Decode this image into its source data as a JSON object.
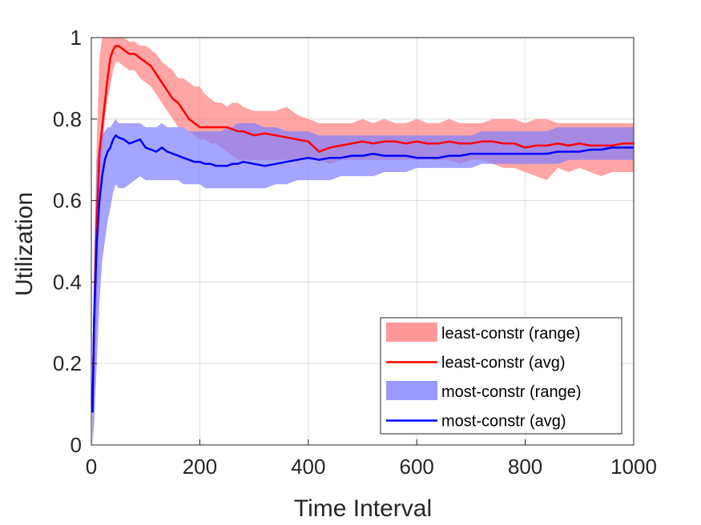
{
  "chart_data": {
    "type": "line",
    "xlabel": "Time Interval",
    "ylabel": "Utilization",
    "xlim": [
      0,
      1000
    ],
    "ylim": [
      0,
      1
    ],
    "xticks": [
      0,
      200,
      400,
      600,
      800,
      1000
    ],
    "yticks": [
      0,
      0.2,
      0.4,
      0.6,
      0.8,
      1
    ],
    "xtick_labels": [
      "0",
      "200",
      "400",
      "600",
      "800",
      "1000"
    ],
    "ytick_labels": [
      "0",
      "0.2",
      "0.4",
      "0.6",
      "0.8",
      "1"
    ],
    "grid": true,
    "legend_position": "bottom-right",
    "series": [
      {
        "name": "least-constr (avg)",
        "range_name": "least-constr (range)",
        "color": "#ff0000",
        "range_color": "#ff7f7f",
        "x": [
          2,
          5,
          10,
          15,
          20,
          25,
          30,
          35,
          40,
          45,
          50,
          60,
          70,
          80,
          90,
          100,
          110,
          120,
          130,
          140,
          150,
          160,
          170,
          180,
          190,
          200,
          210,
          220,
          230,
          240,
          250,
          260,
          270,
          280,
          300,
          320,
          340,
          360,
          380,
          400,
          420,
          440,
          460,
          480,
          500,
          520,
          540,
          560,
          580,
          600,
          620,
          640,
          660,
          680,
          700,
          720,
          740,
          760,
          780,
          800,
          820,
          840,
          860,
          880,
          900,
          920,
          940,
          960,
          980,
          1000
        ],
        "avg": [
          0.08,
          0.3,
          0.55,
          0.72,
          0.78,
          0.84,
          0.9,
          0.95,
          0.97,
          0.98,
          0.98,
          0.97,
          0.96,
          0.96,
          0.95,
          0.94,
          0.93,
          0.91,
          0.89,
          0.87,
          0.85,
          0.84,
          0.82,
          0.8,
          0.79,
          0.78,
          0.78,
          0.78,
          0.78,
          0.78,
          0.78,
          0.775,
          0.77,
          0.77,
          0.76,
          0.765,
          0.76,
          0.755,
          0.75,
          0.745,
          0.72,
          0.73,
          0.735,
          0.74,
          0.745,
          0.74,
          0.745,
          0.745,
          0.74,
          0.745,
          0.74,
          0.74,
          0.745,
          0.74,
          0.74,
          0.745,
          0.745,
          0.74,
          0.74,
          0.73,
          0.735,
          0.735,
          0.74,
          0.735,
          0.74,
          0.735,
          0.735,
          0.735,
          0.74,
          0.74
        ],
        "lower": [
          0.0,
          0.1,
          0.3,
          0.55,
          0.7,
          0.8,
          0.85,
          0.88,
          0.92,
          0.94,
          0.94,
          0.93,
          0.92,
          0.92,
          0.9,
          0.89,
          0.88,
          0.86,
          0.84,
          0.82,
          0.8,
          0.78,
          0.78,
          0.77,
          0.76,
          0.75,
          0.75,
          0.74,
          0.74,
          0.73,
          0.72,
          0.71,
          0.7,
          0.7,
          0.7,
          0.7,
          0.7,
          0.7,
          0.7,
          0.7,
          0.7,
          0.69,
          0.7,
          0.7,
          0.7,
          0.7,
          0.7,
          0.7,
          0.7,
          0.7,
          0.7,
          0.7,
          0.7,
          0.69,
          0.7,
          0.7,
          0.69,
          0.68,
          0.68,
          0.67,
          0.66,
          0.65,
          0.68,
          0.67,
          0.68,
          0.67,
          0.66,
          0.67,
          0.67,
          0.67
        ],
        "upper": [
          0.15,
          0.45,
          0.75,
          0.95,
          1.0,
          1.0,
          1.0,
          1.0,
          1.0,
          1.0,
          1.0,
          1.0,
          0.99,
          0.99,
          0.98,
          0.98,
          0.97,
          0.96,
          0.94,
          0.93,
          0.92,
          0.9,
          0.9,
          0.89,
          0.88,
          0.88,
          0.86,
          0.85,
          0.84,
          0.84,
          0.83,
          0.84,
          0.84,
          0.83,
          0.82,
          0.82,
          0.82,
          0.83,
          0.81,
          0.8,
          0.79,
          0.79,
          0.79,
          0.79,
          0.8,
          0.79,
          0.8,
          0.79,
          0.79,
          0.8,
          0.79,
          0.79,
          0.8,
          0.79,
          0.79,
          0.79,
          0.8,
          0.8,
          0.8,
          0.79,
          0.8,
          0.8,
          0.79,
          0.79,
          0.79,
          0.79,
          0.79,
          0.79,
          0.79,
          0.79
        ]
      },
      {
        "name": "most-constr (avg)",
        "range_name": "most-constr (range)",
        "color": "#0000ff",
        "range_color": "#7f7fff",
        "x": [
          2,
          5,
          10,
          15,
          20,
          25,
          30,
          35,
          40,
          45,
          50,
          60,
          70,
          80,
          90,
          100,
          110,
          120,
          130,
          140,
          150,
          160,
          170,
          180,
          190,
          200,
          210,
          220,
          230,
          240,
          250,
          260,
          270,
          280,
          300,
          320,
          340,
          360,
          380,
          400,
          420,
          440,
          460,
          480,
          500,
          520,
          540,
          560,
          580,
          600,
          620,
          640,
          660,
          680,
          700,
          720,
          740,
          760,
          780,
          800,
          820,
          840,
          860,
          880,
          900,
          920,
          940,
          960,
          980,
          1000
        ],
        "avg": [
          0.08,
          0.3,
          0.5,
          0.6,
          0.66,
          0.7,
          0.72,
          0.73,
          0.75,
          0.76,
          0.755,
          0.75,
          0.74,
          0.745,
          0.75,
          0.73,
          0.725,
          0.72,
          0.73,
          0.72,
          0.715,
          0.71,
          0.705,
          0.7,
          0.695,
          0.695,
          0.69,
          0.69,
          0.685,
          0.685,
          0.685,
          0.69,
          0.69,
          0.695,
          0.69,
          0.685,
          0.69,
          0.695,
          0.7,
          0.705,
          0.7,
          0.705,
          0.705,
          0.71,
          0.71,
          0.715,
          0.71,
          0.71,
          0.71,
          0.705,
          0.705,
          0.705,
          0.71,
          0.71,
          0.715,
          0.715,
          0.715,
          0.715,
          0.715,
          0.715,
          0.715,
          0.715,
          0.72,
          0.72,
          0.72,
          0.725,
          0.725,
          0.73,
          0.73,
          0.73
        ],
        "lower": [
          0.0,
          0.05,
          0.2,
          0.35,
          0.45,
          0.5,
          0.55,
          0.58,
          0.62,
          0.64,
          0.63,
          0.63,
          0.64,
          0.65,
          0.66,
          0.65,
          0.65,
          0.65,
          0.65,
          0.65,
          0.65,
          0.65,
          0.64,
          0.64,
          0.64,
          0.64,
          0.63,
          0.63,
          0.63,
          0.63,
          0.63,
          0.63,
          0.63,
          0.63,
          0.63,
          0.63,
          0.64,
          0.64,
          0.65,
          0.65,
          0.65,
          0.65,
          0.66,
          0.66,
          0.66,
          0.66,
          0.67,
          0.67,
          0.67,
          0.68,
          0.68,
          0.68,
          0.68,
          0.68,
          0.68,
          0.69,
          0.69,
          0.69,
          0.69,
          0.69,
          0.69,
          0.69,
          0.69,
          0.7,
          0.7,
          0.7,
          0.7,
          0.7,
          0.7,
          0.7
        ],
        "upper": [
          0.2,
          0.45,
          0.7,
          0.74,
          0.76,
          0.77,
          0.78,
          0.78,
          0.79,
          0.8,
          0.79,
          0.79,
          0.79,
          0.79,
          0.79,
          0.78,
          0.78,
          0.78,
          0.79,
          0.78,
          0.78,
          0.78,
          0.78,
          0.77,
          0.77,
          0.77,
          0.77,
          0.77,
          0.77,
          0.77,
          0.78,
          0.78,
          0.79,
          0.79,
          0.79,
          0.78,
          0.78,
          0.77,
          0.77,
          0.77,
          0.76,
          0.76,
          0.76,
          0.76,
          0.76,
          0.76,
          0.76,
          0.76,
          0.76,
          0.76,
          0.76,
          0.76,
          0.76,
          0.76,
          0.76,
          0.77,
          0.77,
          0.77,
          0.77,
          0.77,
          0.77,
          0.77,
          0.78,
          0.78,
          0.78,
          0.78,
          0.78,
          0.78,
          0.78,
          0.78
        ]
      }
    ],
    "legend": [
      {
        "label": "least-constr (range)",
        "kind": "patch",
        "color": "#ff7f7f"
      },
      {
        "label": "least-constr (avg)",
        "kind": "line",
        "color": "#ff0000"
      },
      {
        "label": "most-constr (range)",
        "kind": "patch",
        "color": "#7f7fff"
      },
      {
        "label": "most-constr (avg)",
        "kind": "line",
        "color": "#0000ff"
      }
    ]
  }
}
